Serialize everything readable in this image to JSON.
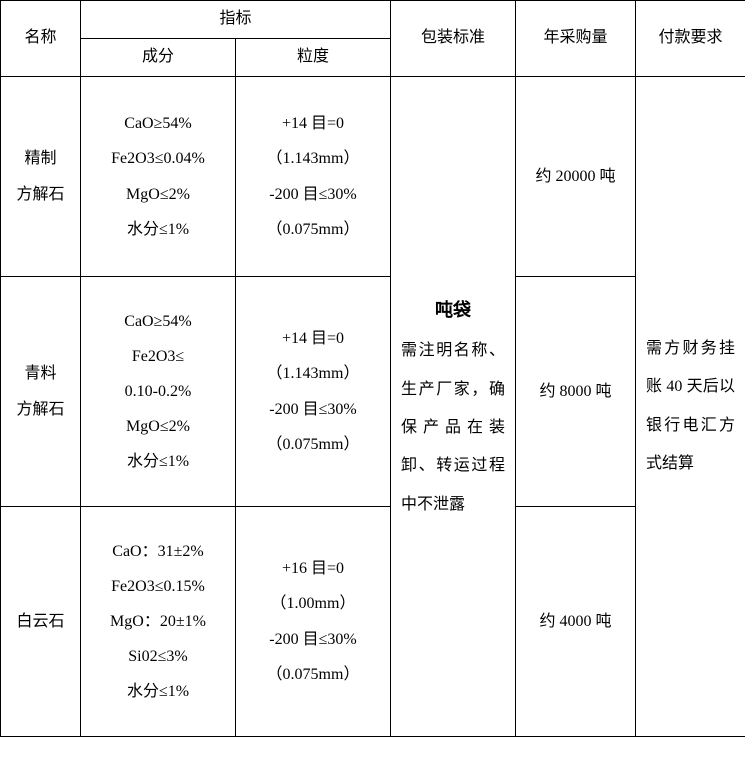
{
  "headers": {
    "name": "名称",
    "index": "指标",
    "comp": "成分",
    "size": "粒度",
    "pkg": "包装标准",
    "qty": "年采购量",
    "pay": "付款要求"
  },
  "rows": [
    {
      "name": "精制\n方解石",
      "comp": "CaO≥54%\nFe2O3≤0.04%\nMgO≤2%\n水分≤1%",
      "size": "+14 目=0\n（1.143mm）\n-200 目≤30%\n（0.075mm）",
      "qty": "约 20000 吨"
    },
    {
      "name": "青料\n方解石",
      "comp": "CaO≥54%\nFe2O3≤\n0.10-0.2%\nMgO≤2%\n水分≤1%",
      "size": "+14 目=0\n（1.143mm）\n-200 目≤30%\n（0.075mm）",
      "qty": "约 8000 吨"
    },
    {
      "name": "白云石",
      "comp": "CaO：31±2%\nFe2O3≤0.15%\nMgO：20±1%\nSi02≤3%\n水分≤1%",
      "size": "+16 目=0\n（1.00mm）\n-200 目≤30%\n（0.075mm）",
      "qty": "约 4000 吨"
    }
  ],
  "pkg_strong": "吨袋",
  "pkg_body": "需注明名称、生产厂家，确保产品在装卸、转运过程中不泄露",
  "pay": "需方财务挂账 40 天后以银行电汇方式结算"
}
